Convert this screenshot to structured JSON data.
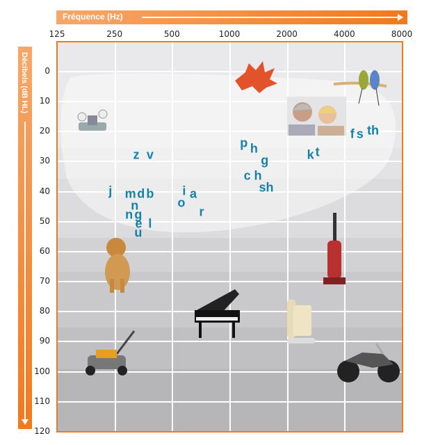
{
  "chart_data": {
    "type": "scatter",
    "xlabel": "Fréquence (Hz)",
    "ylabel": "Décibels (dB HL)",
    "x_scale": "log2",
    "x_ticks": [
      "125",
      "250",
      "500",
      "1000",
      "2000",
      "4000",
      "8000"
    ],
    "x_tick_values": [
      125,
      250,
      500,
      1000,
      2000,
      4000,
      8000
    ],
    "y_ticks": [
      "0",
      "10",
      "20",
      "30",
      "40",
      "50",
      "60",
      "70",
      "80",
      "90",
      "100",
      "110",
      "120"
    ],
    "y_tick_values": [
      0,
      10,
      20,
      30,
      40,
      50,
      60,
      70,
      80,
      90,
      100,
      110,
      120
    ],
    "ylim": [
      -9,
      120
    ],
    "y_inverted": true,
    "grid": true,
    "letter_color": "#1580a8",
    "accent_color": "#f07a1e",
    "speech_sounds": [
      {
        "label": "z",
        "freq": 325,
        "db": 28
      },
      {
        "label": "v",
        "freq": 384,
        "db": 28
      },
      {
        "label": "j",
        "freq": 238,
        "db": 40
      },
      {
        "label": "m",
        "freq": 303,
        "db": 41
      },
      {
        "label": "d",
        "freq": 344,
        "db": 41
      },
      {
        "label": "b",
        "freq": 384,
        "db": 41
      },
      {
        "label": "n",
        "freq": 319,
        "db": 45
      },
      {
        "label": "n",
        "freq": 298,
        "db": 48
      },
      {
        "label": "g",
        "freq": 333,
        "db": 48
      },
      {
        "label": "e",
        "freq": 335,
        "db": 51
      },
      {
        "label": "u",
        "freq": 333,
        "db": 54
      },
      {
        "label": "l",
        "freq": 384,
        "db": 51
      },
      {
        "label": "i",
        "freq": 579,
        "db": 40
      },
      {
        "label": "a",
        "freq": 647,
        "db": 41
      },
      {
        "label": "o",
        "freq": 560,
        "db": 44
      },
      {
        "label": "r",
        "freq": 715,
        "db": 47
      },
      {
        "label": "p",
        "freq": 1190,
        "db": 24
      },
      {
        "label": "h",
        "freq": 1345,
        "db": 26
      },
      {
        "label": "g",
        "freq": 1530,
        "db": 30
      },
      {
        "label": "c",
        "freq": 1240,
        "db": 35
      },
      {
        "label": "h",
        "freq": 1410,
        "db": 35
      },
      {
        "label": "sh",
        "freq": 1560,
        "db": 39
      },
      {
        "label": "k",
        "freq": 2660,
        "db": 28
      },
      {
        "label": "t",
        "freq": 2890,
        "db": 27
      },
      {
        "label": "f",
        "freq": 4400,
        "db": 21
      },
      {
        "label": "s",
        "freq": 4830,
        "db": 21
      },
      {
        "label": "th",
        "freq": 5650,
        "db": 20
      }
    ],
    "sound_sources": [
      "dripping-faucet",
      "falling-leaf",
      "birds-chirping",
      "whisper",
      "dog-barking",
      "vacuum-cleaner",
      "piano",
      "telephone-ringing",
      "lawn-mower",
      "motorcycle"
    ]
  }
}
